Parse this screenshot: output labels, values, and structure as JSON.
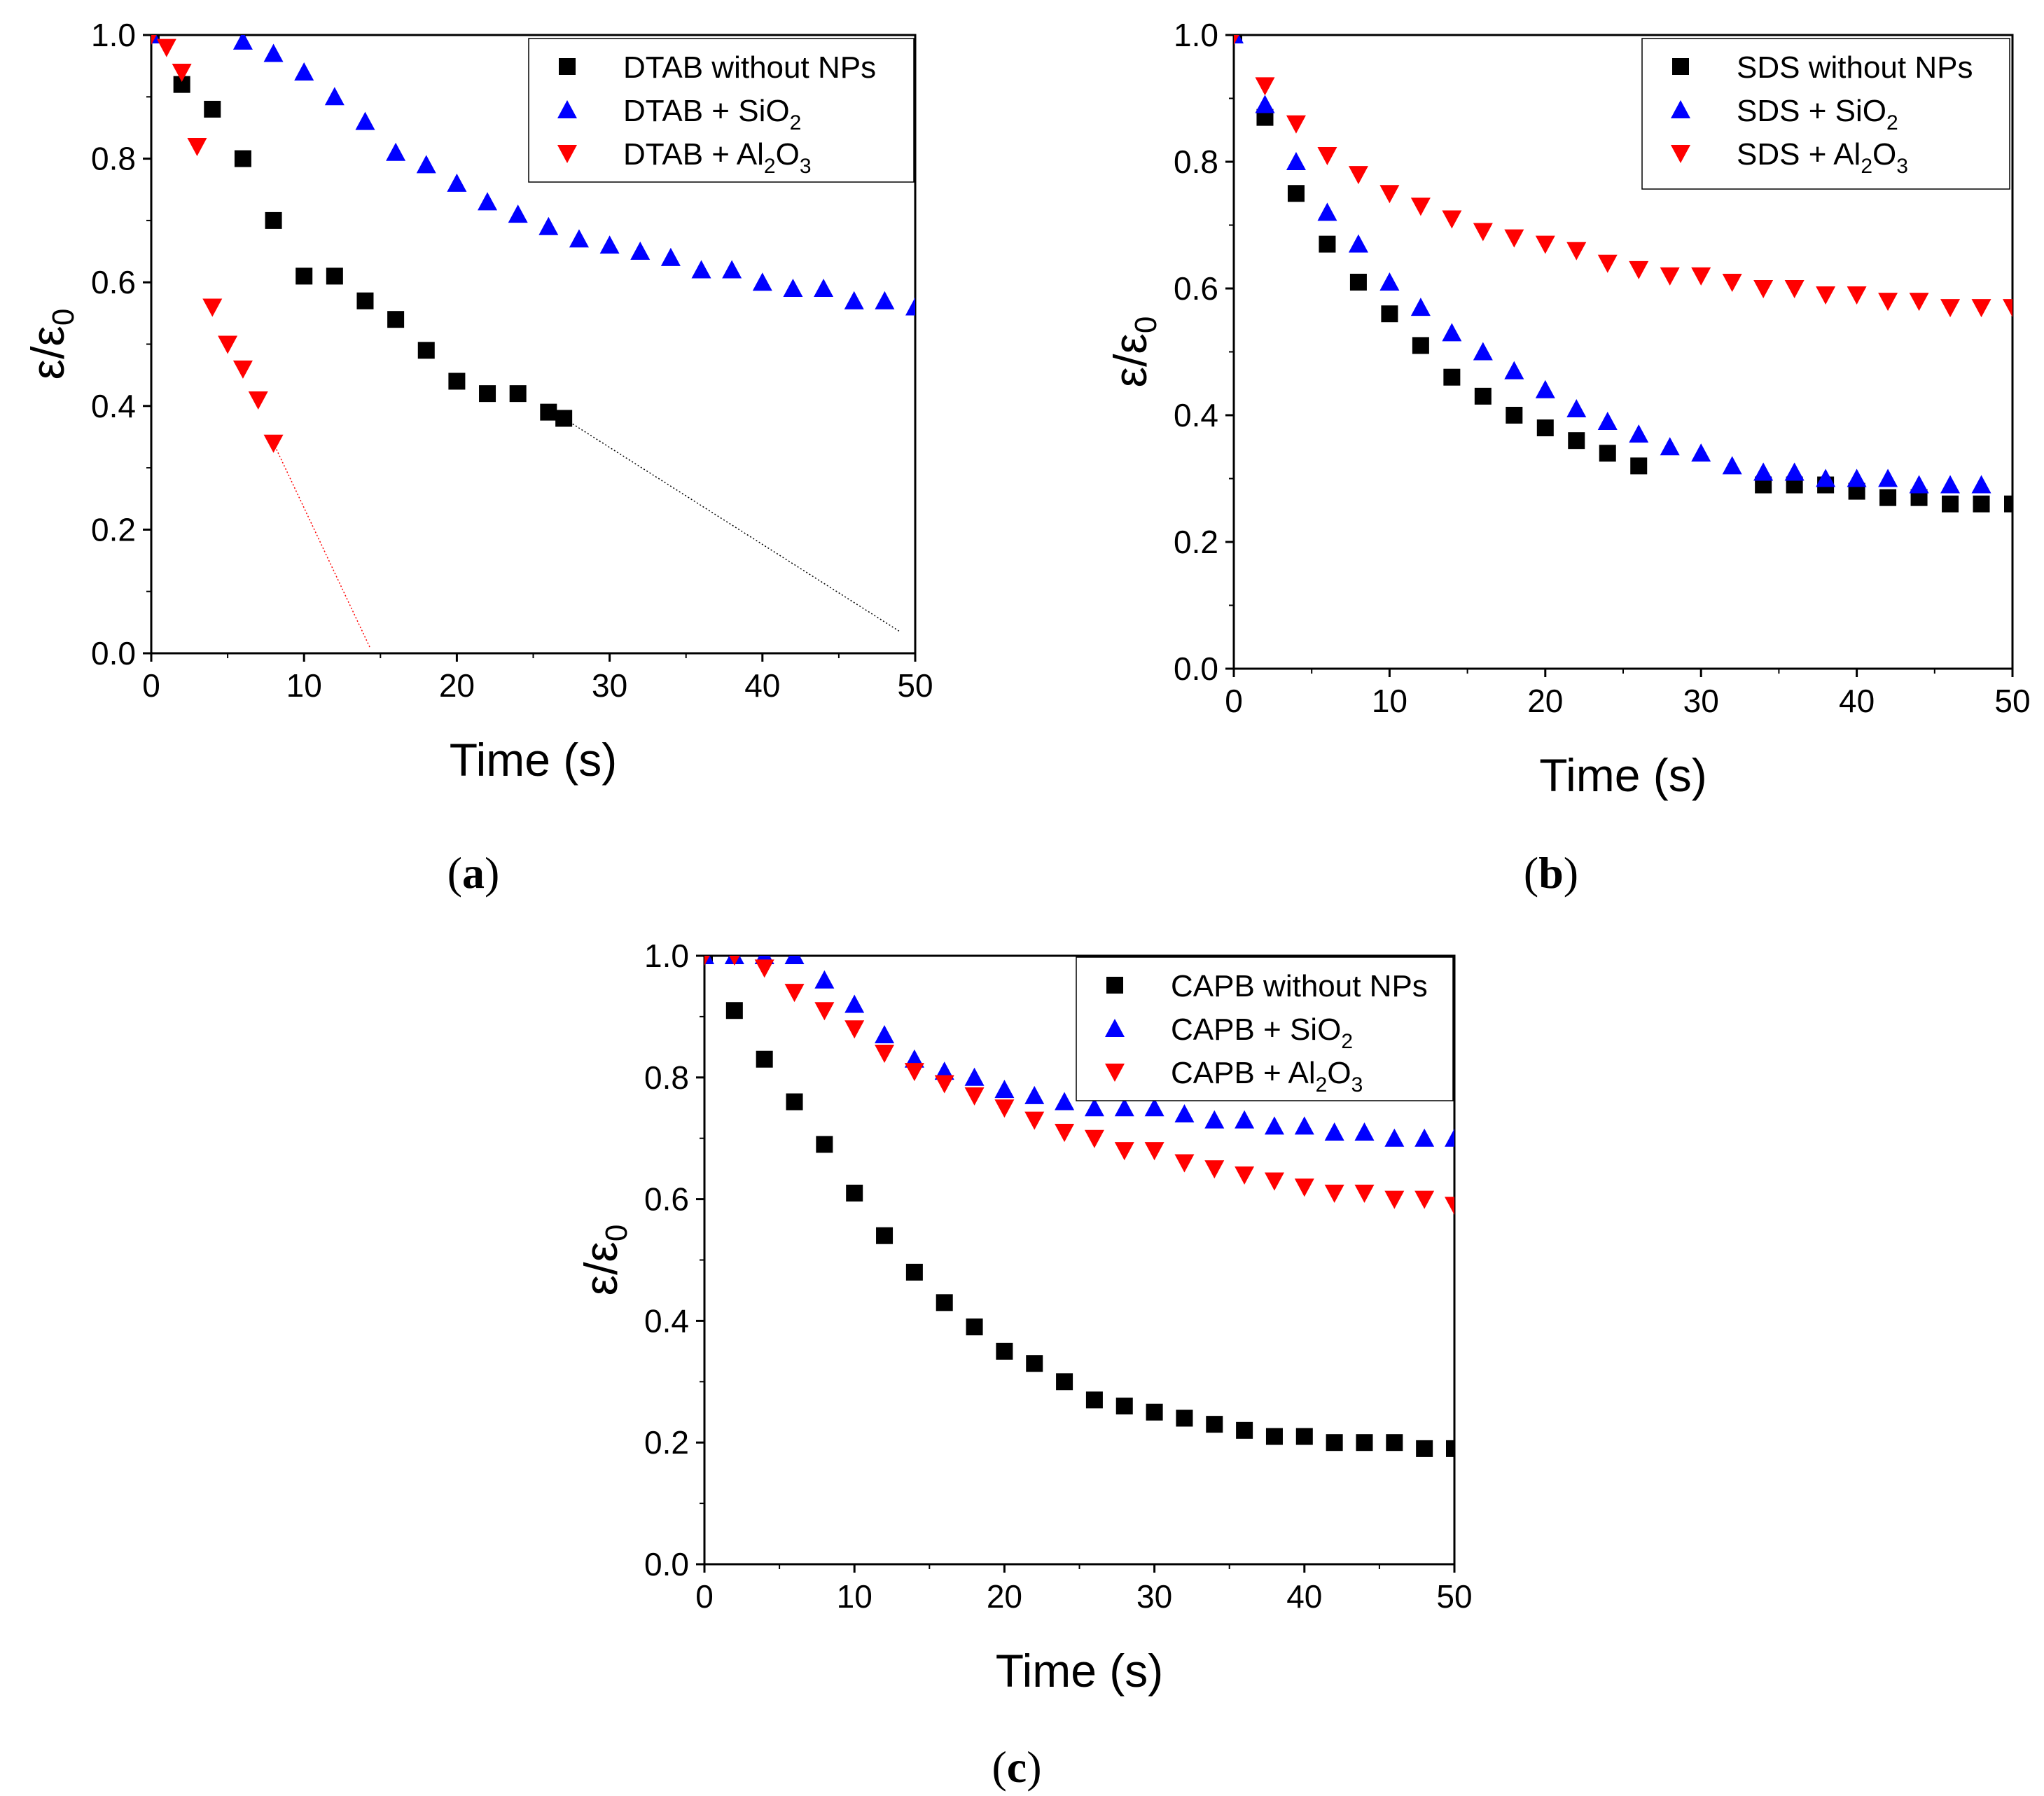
{
  "colors": {
    "black": "#000000",
    "blue": "#0000ff",
    "red": "#ff0000"
  },
  "chart_data": [
    {
      "id": "a",
      "type": "scatter",
      "panel_label": "a",
      "xlabel": "Time (s)",
      "ylabel": "ε/ε",
      "ylabel_sub": "0",
      "xlim": [
        0,
        50
      ],
      "ylim": [
        0,
        1.0
      ],
      "xticks": [
        "0",
        "10",
        "20",
        "30",
        "40",
        "50"
      ],
      "yticks": [
        "0.0",
        "0.2",
        "0.4",
        "0.6",
        "0.8",
        "1.0"
      ],
      "legend_position": "top-right",
      "series": [
        {
          "name": "DTAB without NPs",
          "label_main": "DTAB without NPs",
          "label_sub": "",
          "label_tail": "",
          "marker": "square",
          "color": "#000000",
          "x": [
            0,
            2,
            4,
            6,
            8,
            10,
            12,
            14,
            16,
            18,
            20,
            22,
            24,
            26,
            27
          ],
          "y": [
            1.0,
            0.92,
            0.88,
            0.8,
            0.7,
            0.61,
            0.61,
            0.57,
            0.54,
            0.49,
            0.44,
            0.42,
            0.42,
            0.39,
            0.38
          ],
          "trend": {
            "x": [
              27,
              49
            ],
            "y": [
              0.38,
              0.035
            ]
          }
        },
        {
          "name": "DTAB + SiO2",
          "label_main": "DTAB + SiO",
          "label_sub": "2",
          "label_tail": "",
          "marker": "triangle-up",
          "color": "#0000ff",
          "x": [
            0,
            6,
            8,
            10,
            12,
            14,
            16,
            18,
            20,
            22,
            24,
            26,
            28,
            30,
            32,
            34,
            36,
            38,
            40,
            42,
            44,
            46,
            48,
            50
          ],
          "y": [
            1.0,
            0.99,
            0.97,
            0.94,
            0.9,
            0.86,
            0.81,
            0.79,
            0.76,
            0.73,
            0.71,
            0.69,
            0.67,
            0.66,
            0.65,
            0.64,
            0.62,
            0.62,
            0.6,
            0.59,
            0.59,
            0.57,
            0.57,
            0.56
          ]
        },
        {
          "name": "DTAB + Al2O3",
          "label_main": "DTAB + Al",
          "label_sub": "2",
          "label_tail": "O",
          "label_sub2": "3",
          "marker": "triangle-down",
          "color": "#ff0000",
          "x": [
            0,
            1,
            2,
            3,
            4,
            5,
            6,
            7,
            8
          ],
          "y": [
            1.0,
            0.98,
            0.94,
            0.82,
            0.56,
            0.5,
            0.46,
            0.41,
            0.34
          ],
          "trend": {
            "x": [
              8,
              14.3
            ],
            "y": [
              0.34,
              0.01
            ]
          }
        }
      ]
    },
    {
      "id": "b",
      "type": "scatter",
      "panel_label": "b",
      "xlabel": "Time (s)",
      "ylabel": "ε/ε",
      "ylabel_sub": "0",
      "xlim": [
        0,
        50
      ],
      "ylim": [
        0,
        1.0
      ],
      "xticks": [
        "0",
        "10",
        "20",
        "30",
        "40",
        "50"
      ],
      "yticks": [
        "0.0",
        "0.2",
        "0.4",
        "0.6",
        "0.8",
        "1.0"
      ],
      "legend_position": "top-right",
      "series": [
        {
          "name": "SDS without NPs",
          "label_main": "SDS without NPs",
          "label_sub": "",
          "label_tail": "",
          "marker": "square",
          "color": "#000000",
          "x": [
            0,
            2,
            4,
            6,
            8,
            10,
            12,
            14,
            16,
            18,
            20,
            22,
            24,
            26,
            34,
            36,
            38,
            40,
            42,
            44,
            46,
            48,
            50
          ],
          "y": [
            1.0,
            0.87,
            0.75,
            0.67,
            0.61,
            0.56,
            0.51,
            0.46,
            0.43,
            0.4,
            0.38,
            0.36,
            0.34,
            0.32,
            0.29,
            0.29,
            0.29,
            0.28,
            0.27,
            0.27,
            0.26,
            0.26,
            0.26
          ]
        },
        {
          "name": "SDS + SiO2",
          "label_main": "SDS + SiO",
          "label_sub": "2",
          "label_tail": "",
          "marker": "triangle-up",
          "color": "#0000ff",
          "x": [
            0,
            2,
            4,
            6,
            8,
            10,
            12,
            14,
            16,
            18,
            20,
            22,
            24,
            26,
            28,
            30,
            32,
            34,
            36,
            38,
            40,
            42,
            44,
            46,
            48
          ],
          "y": [
            1.0,
            0.89,
            0.8,
            0.72,
            0.67,
            0.61,
            0.57,
            0.53,
            0.5,
            0.47,
            0.44,
            0.41,
            0.39,
            0.37,
            0.35,
            0.34,
            0.32,
            0.31,
            0.31,
            0.3,
            0.3,
            0.3,
            0.29,
            0.29,
            0.29
          ]
        },
        {
          "name": "SDS + Al2O3",
          "label_main": "SDS + Al",
          "label_sub": "2",
          "label_tail": "O",
          "label_sub2": "3",
          "marker": "triangle-down",
          "color": "#ff0000",
          "x": [
            0,
            2,
            4,
            6,
            8,
            10,
            12,
            14,
            16,
            18,
            20,
            22,
            24,
            26,
            28,
            30,
            32,
            34,
            36,
            38,
            40,
            42,
            44,
            46,
            48,
            50
          ],
          "y": [
            1.0,
            0.92,
            0.86,
            0.81,
            0.78,
            0.75,
            0.73,
            0.71,
            0.69,
            0.68,
            0.67,
            0.66,
            0.64,
            0.63,
            0.62,
            0.62,
            0.61,
            0.6,
            0.6,
            0.59,
            0.59,
            0.58,
            0.58,
            0.57,
            0.57,
            0.57
          ]
        }
      ]
    },
    {
      "id": "c",
      "type": "scatter",
      "panel_label": "c",
      "xlabel": "Time (s)",
      "ylabel": "ε/ε",
      "ylabel_sub": "0",
      "xlim": [
        0,
        50
      ],
      "ylim": [
        0,
        1.0
      ],
      "xticks": [
        "0",
        "10",
        "20",
        "30",
        "40",
        "50"
      ],
      "yticks": [
        "0.0",
        "0.2",
        "0.4",
        "0.6",
        "0.8",
        "1.0"
      ],
      "legend_position": "top-right",
      "series": [
        {
          "name": "CAPB without NPs",
          "label_main": "CAPB without NPs",
          "label_sub": "",
          "label_tail": "",
          "marker": "square",
          "color": "#000000",
          "x": [
            0,
            2,
            4,
            6,
            8,
            10,
            12,
            14,
            16,
            18,
            20,
            22,
            24,
            26,
            28,
            30,
            32,
            34,
            36,
            38,
            40,
            42,
            44,
            46,
            48,
            50
          ],
          "y": [
            1.0,
            0.91,
            0.83,
            0.76,
            0.69,
            0.61,
            0.54,
            0.48,
            0.43,
            0.39,
            0.35,
            0.33,
            0.3,
            0.27,
            0.26,
            0.25,
            0.24,
            0.23,
            0.22,
            0.21,
            0.21,
            0.2,
            0.2,
            0.2,
            0.19,
            0.19
          ]
        },
        {
          "name": "CAPB + SiO2",
          "label_main": "CAPB + SiO",
          "label_sub": "2",
          "label_tail": "",
          "marker": "triangle-up",
          "color": "#0000ff",
          "x": [
            0,
            2,
            4,
            6,
            8,
            10,
            12,
            14,
            16,
            18,
            20,
            22,
            24,
            26,
            28,
            30,
            32,
            34,
            36,
            38,
            40,
            42,
            44,
            46,
            48,
            50
          ],
          "y": [
            1.0,
            1.0,
            1.0,
            1.0,
            0.96,
            0.92,
            0.87,
            0.83,
            0.81,
            0.8,
            0.78,
            0.77,
            0.76,
            0.75,
            0.75,
            0.75,
            0.74,
            0.73,
            0.73,
            0.72,
            0.72,
            0.71,
            0.71,
            0.7,
            0.7,
            0.7
          ]
        },
        {
          "name": "CAPB + Al2O3",
          "label_main": "CAPB + Al",
          "label_sub": "2",
          "label_tail": "O",
          "label_sub2": "3",
          "marker": "triangle-down",
          "color": "#ff0000",
          "x": [
            0,
            2,
            4,
            6,
            8,
            10,
            12,
            14,
            16,
            18,
            20,
            22,
            24,
            26,
            28,
            30,
            32,
            34,
            36,
            38,
            40,
            42,
            44,
            46,
            48,
            50
          ],
          "y": [
            1.0,
            1.0,
            0.98,
            0.94,
            0.91,
            0.88,
            0.84,
            0.81,
            0.79,
            0.77,
            0.75,
            0.73,
            0.71,
            0.7,
            0.68,
            0.68,
            0.66,
            0.65,
            0.64,
            0.63,
            0.62,
            0.61,
            0.61,
            0.6,
            0.6,
            0.59
          ]
        }
      ]
    }
  ]
}
